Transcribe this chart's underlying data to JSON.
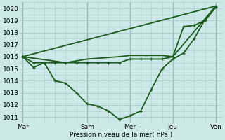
{
  "background_color": "#cce8e8",
  "grid_color": "#aacccc",
  "line_color": "#1a5c1a",
  "xlabel": "Pression niveau de la mer( hPa )",
  "xtick_labels": [
    "Mar",
    "Sam",
    "Mer",
    "Jeu",
    "Ven"
  ],
  "xtick_positions": [
    0,
    3,
    5,
    7,
    9
  ],
  "ylim": [
    1010.5,
    1020.5
  ],
  "yticks": [
    1011,
    1012,
    1013,
    1014,
    1015,
    1016,
    1017,
    1018,
    1019,
    1020
  ],
  "series": [
    {
      "x": [
        0,
        0.5,
        1.0,
        1.5,
        2.0,
        2.5,
        3.0,
        3.5,
        4.0,
        4.5,
        5.0,
        5.5,
        6.0,
        6.5,
        7.0,
        7.5,
        8.0,
        8.5,
        9.0
      ],
      "y": [
        1016,
        1015.1,
        1015.5,
        1014.0,
        1013.8,
        1013.0,
        1012.1,
        1011.9,
        1011.5,
        1010.8,
        1011.1,
        1011.5,
        1013.3,
        1015.0,
        1015.8,
        1016.3,
        1017.5,
        1019.1,
        1020.1
      ],
      "lw": 1.3,
      "marker": true
    },
    {
      "x": [
        0,
        0.5,
        1.0,
        1.5,
        2.0,
        2.5,
        3.0,
        3.5,
        4.0,
        4.5,
        5.0,
        5.5,
        6.0,
        6.5,
        7.0,
        7.5,
        8.0,
        8.5,
        9.0
      ],
      "y": [
        1016,
        1015.5,
        1015.5,
        1015.5,
        1015.5,
        1015.5,
        1015.5,
        1015.5,
        1015.5,
        1015.5,
        1015.8,
        1015.8,
        1015.8,
        1015.8,
        1016.0,
        1018.5,
        1018.6,
        1019.0,
        1020.1
      ],
      "lw": 1.3,
      "marker": true
    },
    {
      "x": [
        0,
        9
      ],
      "y": [
        1016,
        1020.2
      ],
      "lw": 1.3,
      "marker": false
    },
    {
      "x": [
        0,
        2.0,
        3.0,
        4.5,
        5.0,
        5.5,
        6.5,
        7.0,
        9.0
      ],
      "y": [
        1016,
        1015.5,
        1015.8,
        1016.0,
        1016.1,
        1016.1,
        1016.1,
        1016.0,
        1020.2
      ],
      "lw": 1.3,
      "marker": false
    }
  ],
  "vline_color": "#336633",
  "vlines": [
    0,
    3,
    5,
    7,
    9
  ],
  "figsize": [
    3.2,
    2.0
  ],
  "dpi": 100,
  "label_fontsize": 6.5,
  "tick_fontsize": 6.5
}
